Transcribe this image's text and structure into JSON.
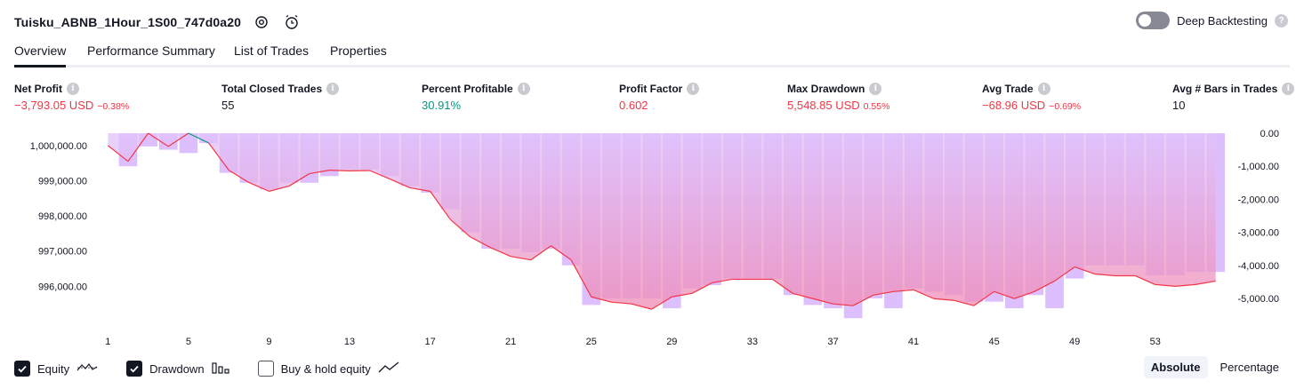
{
  "header": {
    "title": "Tuisku_ABNB_1Hour_1S00_747d0a20",
    "settings_icon": "gear-icon",
    "alert_icon": "alarm-add-icon"
  },
  "deep_backtesting": {
    "label": "Deep Backtesting",
    "enabled": false
  },
  "tabs": [
    {
      "label": "Overview",
      "active": true
    },
    {
      "label": "Performance Summary",
      "active": false
    },
    {
      "label": "List of Trades",
      "active": false
    },
    {
      "label": "Properties",
      "active": false
    }
  ],
  "stats": {
    "net_profit": {
      "label": "Net Profit",
      "value": "−3,793.05 USD",
      "pct": "−0.38%"
    },
    "total_closed_trades": {
      "label": "Total Closed Trades",
      "value": "55"
    },
    "percent_profitable": {
      "label": "Percent Profitable",
      "value": "30.91%"
    },
    "profit_factor": {
      "label": "Profit Factor",
      "value": "0.602"
    },
    "max_drawdown": {
      "label": "Max Drawdown",
      "value": "5,548.85 USD",
      "pct": "0.55%"
    },
    "avg_trade": {
      "label": "Avg Trade",
      "value": "−68.96 USD",
      "pct": "−0.69%"
    },
    "avg_bars": {
      "label": "Avg # Bars in Trades",
      "value": "10"
    }
  },
  "chart_data": {
    "type": "line",
    "x": [
      1,
      2,
      3,
      4,
      5,
      6,
      7,
      8,
      9,
      10,
      11,
      12,
      13,
      14,
      15,
      16,
      17,
      18,
      19,
      20,
      21,
      22,
      23,
      24,
      25,
      26,
      27,
      28,
      29,
      30,
      31,
      32,
      33,
      34,
      35,
      36,
      37,
      38,
      39,
      40,
      41,
      42,
      43,
      44,
      45,
      46,
      47,
      48,
      49,
      50,
      51,
      52,
      53,
      54,
      55,
      56
    ],
    "series": [
      {
        "type": "line",
        "axis": "left",
        "values": [
          1000000,
          999550,
          1000350,
          999975,
          1000350,
          1000075,
          999300,
          998950,
          998700,
          998850,
          999200,
          999300,
          999280,
          999290,
          999050,
          998800,
          998700,
          997900,
          997400,
          997100,
          996850,
          996750,
          997150,
          996750,
          995700,
          995550,
          995500,
          995350,
          995700,
          995800,
          996100,
          996200,
          996200,
          996200,
          995800,
          995650,
          995500,
          995450,
          995750,
          995850,
          995900,
          995650,
          995600,
          995450,
          995850,
          995650,
          995850,
          996150,
          996550,
          996350,
          996300,
          996300,
          996050,
          996000,
          996050,
          996150
        ]
      },
      {
        "type": "bar",
        "axis": "right",
        "values": [
          0,
          -1000,
          -400,
          -500,
          -600,
          -300,
          -1200,
          -1500,
          -1700,
          -1500,
          -1500,
          -1300,
          -1100,
          -1100,
          -1300,
          -1600,
          -1800,
          -2300,
          -3000,
          -3500,
          -3500,
          -3600,
          -3500,
          -4000,
          -5200,
          -5000,
          -5000,
          -5000,
          -5300,
          -4700,
          -4600,
          -4400,
          -4400,
          -4400,
          -4900,
          -5200,
          -5300,
          -5600,
          -5000,
          -5300,
          -4700,
          -4800,
          -4900,
          -5100,
          -5100,
          -5300,
          -4900,
          -5300,
          -4400,
          -4000,
          -4000,
          -4000,
          -4300,
          -4300,
          -4200,
          -4200
        ]
      }
    ],
    "x_ticks": [
      "1",
      "5",
      "9",
      "13",
      "17",
      "21",
      "25",
      "29",
      "33",
      "37",
      "41",
      "45",
      "49",
      "53"
    ],
    "left_ticks": [
      "1,000,000.00",
      "999,000.00",
      "998,000.00",
      "997,000.00",
      "996,000.00"
    ],
    "right_ticks": [
      "0.00",
      "-1,000.00",
      "-2,000.00",
      "-3,000.00",
      "-4,000.00",
      "-5,000.00"
    ],
    "left_ylim": [
      995000,
      1000350
    ],
    "right_ylim": [
      -5700,
      0
    ],
    "colors": {
      "equity_up": "#089981",
      "equity_down": "#f23645",
      "drawdown_bar": "#d8b4fe",
      "area_top": "#e0c3fc",
      "area_bottom": "#f08ab3"
    }
  },
  "footer": {
    "legend": [
      {
        "label": "Equity",
        "checked": true,
        "icon": "equity-line-icon"
      },
      {
        "label": "Drawdown",
        "checked": true,
        "icon": "bars-icon"
      },
      {
        "label": "Buy & hold equity",
        "checked": false,
        "icon": "trend-line-icon"
      }
    ],
    "scale_buttons": [
      {
        "label": "Absolute",
        "active": true
      },
      {
        "label": "Percentage",
        "active": false
      }
    ]
  }
}
